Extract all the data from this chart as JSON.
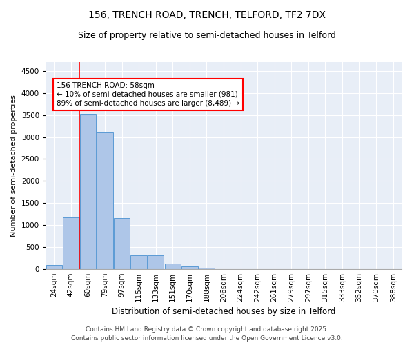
{
  "title1": "156, TRENCH ROAD, TRENCH, TELFORD, TF2 7DX",
  "title2": "Size of property relative to semi-detached houses in Telford",
  "xlabel": "Distribution of semi-detached houses by size in Telford",
  "ylabel": "Number of semi-detached properties",
  "categories": [
    "24sqm",
    "42sqm",
    "60sqm",
    "79sqm",
    "97sqm",
    "115sqm",
    "133sqm",
    "151sqm",
    "170sqm",
    "188sqm",
    "206sqm",
    "224sqm",
    "242sqm",
    "261sqm",
    "279sqm",
    "297sqm",
    "315sqm",
    "333sqm",
    "352sqm",
    "370sqm",
    "388sqm"
  ],
  "values": [
    100,
    1180,
    3520,
    3100,
    1160,
    310,
    310,
    120,
    60,
    30,
    0,
    0,
    0,
    0,
    0,
    0,
    0,
    0,
    0,
    0,
    0
  ],
  "bar_color": "#aec6e8",
  "bar_edge_color": "#5b9bd5",
  "vline_color": "red",
  "vline_pos": 1.5,
  "annotation_text": "156 TRENCH ROAD: 58sqm\n← 10% of semi-detached houses are smaller (981)\n89% of semi-detached houses are larger (8,489) →",
  "ylim": [
    0,
    4700
  ],
  "yticks": [
    0,
    500,
    1000,
    1500,
    2000,
    2500,
    3000,
    3500,
    4000,
    4500
  ],
  "bg_color": "#e8eef7",
  "footer_line1": "Contains HM Land Registry data © Crown copyright and database right 2025.",
  "footer_line2": "Contains public sector information licensed under the Open Government Licence v3.0.",
  "title1_fontsize": 10,
  "title2_fontsize": 9,
  "xlabel_fontsize": 8.5,
  "ylabel_fontsize": 8,
  "tick_fontsize": 7.5,
  "annot_fontsize": 7.5,
  "footer_fontsize": 6.5
}
